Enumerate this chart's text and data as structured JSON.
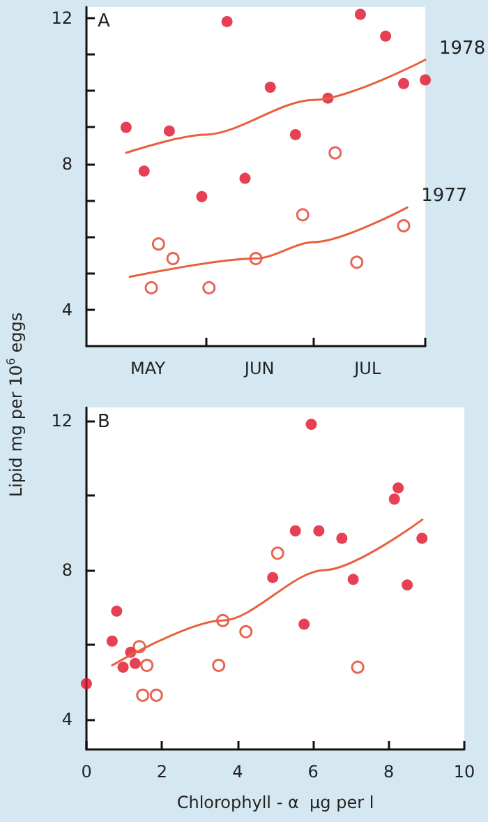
{
  "chart_data": [
    {
      "type": "scatter",
      "annotations": [
        "A"
      ],
      "ylabel": "Lipid mg per 10$^{6}$ eggs",
      "xlim": [
        "--04-29",
        "--08-01"
      ],
      "xticks": [
        {
          "value": "--06-01",
          "label": null
        },
        {
          "value": "--07-01",
          "label": null
        },
        {
          "value": "--08-01",
          "label": null
        },
        {
          "value": "--05-16",
          "label": "MAY"
        },
        {
          "value": "--06-16",
          "label": "JUN"
        },
        {
          "value": "--07-16",
          "label": "JUL"
        }
      ],
      "ylim": [
        3,
        12.3
      ],
      "yticks": [
        4,
        {
          "value": 5,
          "label": null
        },
        {
          "value": 6,
          "label": null
        },
        {
          "value": 7,
          "label": null
        },
        8,
        {
          "value": 9,
          "label": null
        },
        {
          "value": 10,
          "label": null
        },
        {
          "value": 11,
          "label": null
        },
        12
      ],
      "legend": false,
      "grid": false,
      "series": [
        {
          "color": "#e0102a",
          "marker": "circle",
          "x": [
            "--05-10",
            "--05-15",
            "--05-22",
            "--05-31",
            "--06-07",
            "--06-12",
            "--06-19",
            "--06-26",
            "--07-05",
            "--07-14",
            "--07-21",
            "--07-26",
            "--08-01"
          ],
          "values": [
            9.0,
            7.8,
            8.9,
            7.1,
            11.9,
            7.6,
            10.1,
            8.8,
            9.8,
            12.1,
            11.5,
            10.2,
            10.3
          ]
        },
        {
          "color": "#e0402a",
          "marker": "circle-open",
          "x": [
            "--05-17",
            "--05-19",
            "--05-23",
            "--06-02",
            "--06-15",
            "--06-28",
            "--07-07",
            "--07-13",
            "--07-26"
          ],
          "values": [
            4.6,
            5.8,
            5.4,
            4.6,
            5.4,
            6.6,
            8.3,
            5.3,
            6.3
          ]
        },
        {
          "type": "line",
          "name": "1978",
          "color": "#e8603c",
          "x": [
            "--05-10",
            "--06-01",
            "--07-01",
            "--08-01"
          ],
          "values": [
            8.3,
            8.8,
            9.75,
            10.85
          ]
        },
        {
          "type": "line",
          "name": "1977",
          "color": "#e8603c",
          "x": [
            "--05-11",
            "--06-15",
            "--07-01",
            "--07-27"
          ],
          "values": [
            4.9,
            5.4,
            5.85,
            6.8
          ]
        }
      ]
    },
    {
      "type": "scatter",
      "annotations": [
        "B"
      ],
      "xlabel": "Chlorophyll - α  μg per l",
      "xlim": [
        0,
        10
      ],
      "xticks": [
        0,
        2,
        4,
        6,
        8,
        10
      ],
      "ylim": [
        3.2,
        12.35
      ],
      "yticks": [
        4,
        {
          "value": 6,
          "label": null
        },
        8,
        {
          "value": 10,
          "label": null
        },
        12
      ],
      "legend": false,
      "grid": false,
      "series": [
        {
          "color": "#e0102a",
          "marker": "circle",
          "x": [
            0,
            0.68,
            0.8,
            0.97,
            1.17,
            1.29,
            4.93,
            5.53,
            5.76,
            5.95,
            6.15,
            6.76,
            7.06,
            8.15,
            8.25,
            8.49,
            8.88
          ],
          "values": [
            4.96,
            6.1,
            6.9,
            5.4,
            5.8,
            5.5,
            7.8,
            9.05,
            6.55,
            11.9,
            9.05,
            8.85,
            7.75,
            9.9,
            10.2,
            7.6,
            8.85
          ]
        },
        {
          "color": "#e0402a",
          "marker": "circle-open",
          "x": [
            1.4,
            1.49,
            1.6,
            1.85,
            3.5,
            3.61,
            4.22,
            5.06,
            7.18
          ],
          "values": [
            5.95,
            4.65,
            5.45,
            4.65,
            5.45,
            6.65,
            6.35,
            8.45,
            5.4
          ]
        },
        {
          "type": "line",
          "color": "#e8603c",
          "x": [
            0.68,
            3.6,
            6.3,
            8.89
          ],
          "values": [
            5.45,
            6.65,
            8.0,
            9.35
          ]
        }
      ]
    }
  ]
}
